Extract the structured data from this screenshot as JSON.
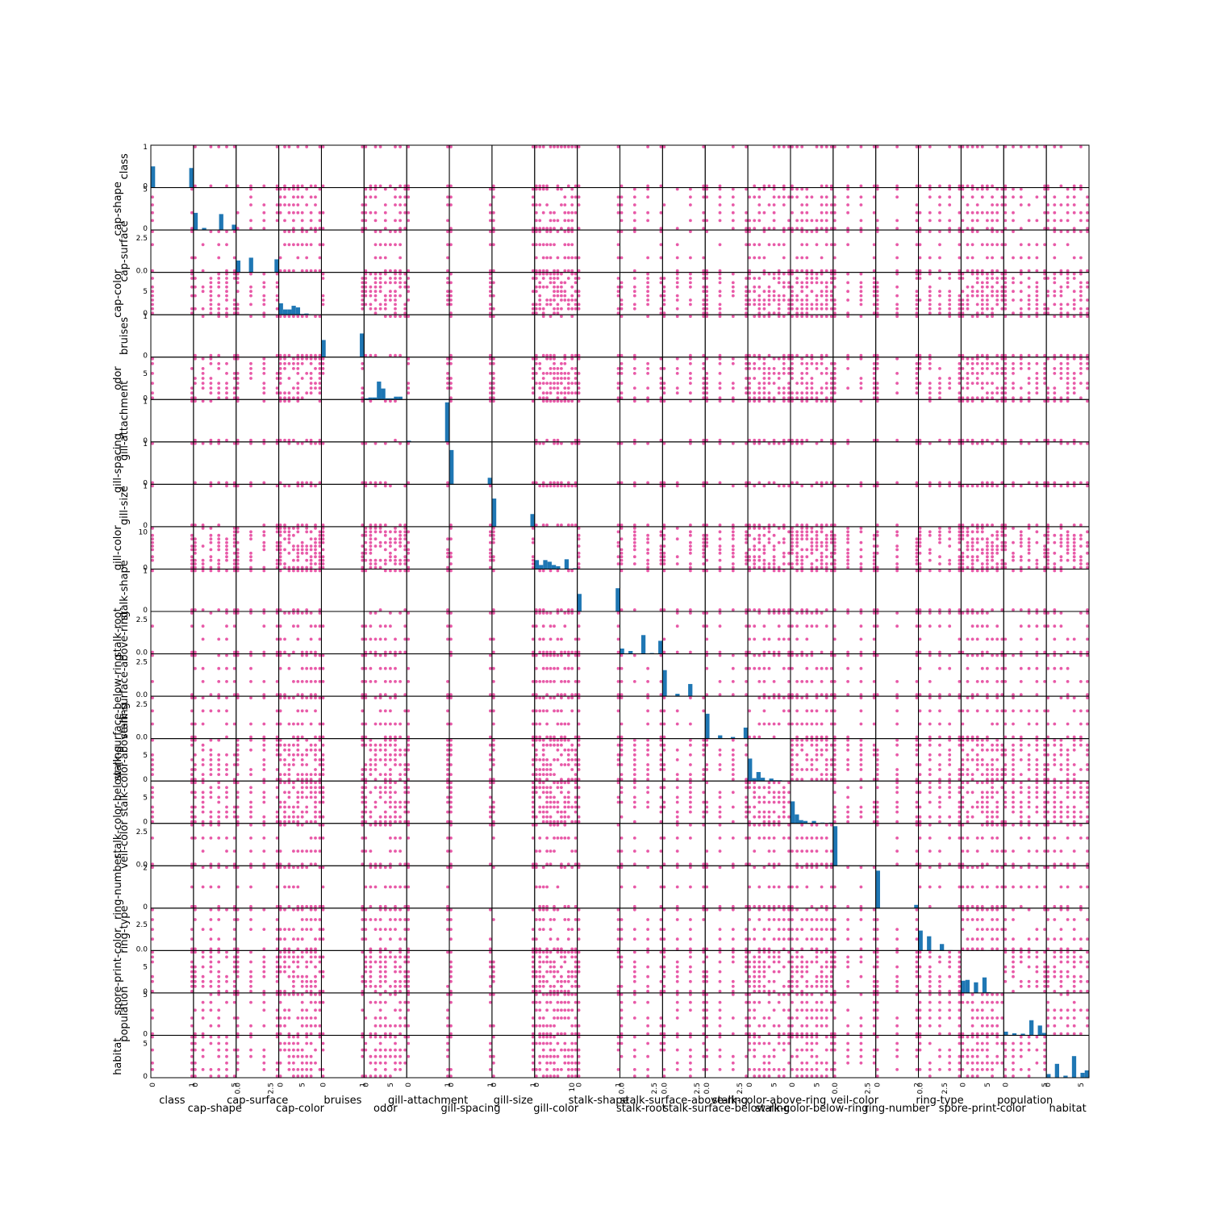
{
  "chart_data": {
    "type": "scatter-matrix",
    "title": "",
    "variables": [
      {
        "name": "class",
        "max": 1,
        "ticks": [
          "0",
          "1"
        ],
        "hist": [
          0.52,
          0,
          0,
          0,
          0,
          0,
          0,
          0,
          0,
          0.48
        ]
      },
      {
        "name": "cap-shape",
        "max": 5,
        "ticks": [
          "0",
          "5"
        ],
        "hist": [
          0.42,
          0.01,
          0.05,
          0,
          0,
          0,
          0.39,
          0,
          0,
          0.13
        ]
      },
      {
        "name": "cap-surface",
        "max": 3,
        "ticks": [
          "0.0",
          "2.5"
        ],
        "hist": [
          0.29,
          0,
          0,
          0.36,
          0,
          0,
          0.01,
          0,
          0,
          0.32
        ]
      },
      {
        "name": "cap-color",
        "max": 9,
        "ticks": [
          "0",
          "5"
        ],
        "hist": [
          0.28,
          0.13,
          0.13,
          0.22,
          0.18,
          0.02,
          0.03,
          0.01,
          0.01,
          0.01
        ]
      },
      {
        "name": "bruises",
        "max": 1,
        "ticks": [
          "0",
          "1"
        ],
        "hist": [
          0.42,
          0,
          0,
          0,
          0,
          0,
          0,
          0,
          0,
          0.58
        ]
      },
      {
        "name": "odor",
        "max": 8,
        "ticks": [
          "0",
          "5"
        ],
        "hist": [
          0.03,
          0.05,
          0.05,
          0.44,
          0.27,
          0.03,
          0.03,
          0.07,
          0.07,
          0
        ]
      },
      {
        "name": "gill-attachment",
        "max": 1,
        "ticks": [
          "0",
          "1"
        ],
        "hist": [
          0.03,
          0,
          0,
          0,
          0,
          0,
          0,
          0,
          0,
          0.97
        ]
      },
      {
        "name": "gill-spacing",
        "max": 1,
        "ticks": [
          "0",
          "1"
        ],
        "hist": [
          0.84,
          0,
          0,
          0,
          0,
          0,
          0,
          0,
          0,
          0.16
        ]
      },
      {
        "name": "gill-size",
        "max": 1,
        "ticks": [
          "0",
          "1"
        ],
        "hist": [
          0.69,
          0,
          0,
          0,
          0,
          0,
          0,
          0,
          0,
          0.31
        ]
      },
      {
        "name": "gill-color",
        "max": 11,
        "ticks": [
          "0",
          "10"
        ],
        "hist": [
          0.22,
          0.1,
          0.22,
          0.18,
          0.1,
          0.07,
          0.01,
          0.24,
          0.01,
          0.02
        ]
      },
      {
        "name": "stalk-shape",
        "max": 1,
        "ticks": [
          "0",
          "1"
        ],
        "hist": [
          0.43,
          0,
          0,
          0,
          0,
          0,
          0,
          0,
          0,
          0.57
        ]
      },
      {
        "name": "stalk-root",
        "max": 3,
        "ticks": [
          "0.0",
          "2.5"
        ],
        "hist": [
          0.13,
          0,
          0.07,
          0,
          0,
          0.46,
          0,
          0.02,
          0,
          0.32
        ]
      },
      {
        "name": "stalk-surface-above-ring",
        "max": 3,
        "ticks": [
          "0.0",
          "2.5"
        ],
        "hist": [
          0.64,
          0,
          0,
          0.06,
          0,
          0,
          0.3,
          0,
          0,
          0
        ]
      },
      {
        "name": "stalk-surface-below-ring",
        "max": 3,
        "ticks": [
          "0.0",
          "2.5"
        ],
        "hist": [
          0.61,
          0,
          0,
          0.08,
          0,
          0,
          0.04,
          0,
          0,
          0.27
        ]
      },
      {
        "name": "stalk-color-above-ring",
        "max": 8,
        "ticks": [
          "0",
          "5"
        ],
        "hist": [
          0.55,
          0.07,
          0.22,
          0.08,
          0.01,
          0.06,
          0.02,
          0.02,
          0,
          0.01
        ]
      },
      {
        "name": "stalk-color-below-ring",
        "max": 8,
        "ticks": [
          "0",
          "5"
        ],
        "hist": [
          0.54,
          0.22,
          0.08,
          0.06,
          0.01,
          0.06,
          0.01,
          0.02,
          0,
          0.02
        ]
      },
      {
        "name": "veil-color",
        "max": 3,
        "ticks": [
          "0.0",
          "2.5"
        ],
        "hist": [
          0.97,
          0,
          0,
          0.01,
          0,
          0,
          0.01,
          0,
          0,
          0.01
        ]
      },
      {
        "name": "ring-number",
        "max": 2,
        "ticks": [
          "0",
          "2"
        ],
        "hist": [
          0.92,
          0,
          0,
          0,
          0,
          0,
          0,
          0,
          0,
          0.08
        ]
      },
      {
        "name": "ring-type",
        "max": 4,
        "ticks": [
          "0.0",
          "2.5"
        ],
        "hist": [
          0.49,
          0,
          0.35,
          0,
          0,
          0.16,
          0,
          0.01,
          0,
          0
        ]
      },
      {
        "name": "spore-print-color",
        "max": 8,
        "ticks": [
          "0",
          "5"
        ],
        "hist": [
          0.3,
          0.32,
          0,
          0.26,
          0,
          0.38,
          0.02,
          0.01,
          0.01,
          0.01
        ]
      },
      {
        "name": "population",
        "max": 5,
        "ticks": [
          "0",
          "5"
        ],
        "hist": [
          0.09,
          0,
          0.05,
          0,
          0.04,
          0,
          0.37,
          0,
          0.24,
          0.06
        ]
      },
      {
        "name": "habitat",
        "max": 6,
        "ticks": [
          "0",
          "5"
        ],
        "hist": [
          0.09,
          0,
          0.34,
          0,
          0.05,
          0,
          0.53,
          0,
          0.12,
          0.18
        ]
      }
    ],
    "offdiag_mark": "scatter",
    "diag_mark": "histogram",
    "colors": {
      "scatter": "#e85aa8",
      "hist": "#1f77b4",
      "frame": "#000000"
    },
    "grid": false
  }
}
